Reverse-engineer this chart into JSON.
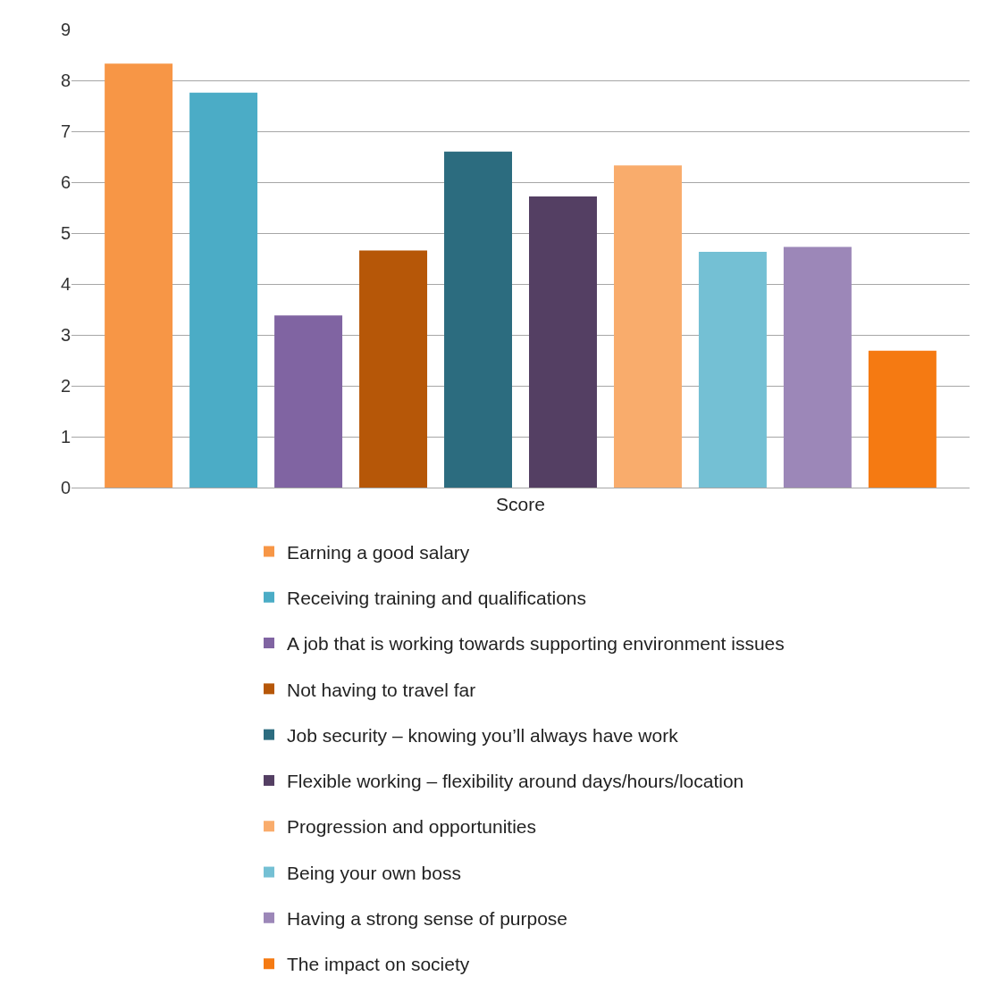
{
  "chart_data": {
    "type": "bar",
    "categories": [
      "Score"
    ],
    "series": [
      {
        "name": "Earning a good salary",
        "color": "#f79646",
        "values": [
          8.33
        ]
      },
      {
        "name": "Receiving training and qualifications",
        "color": "#4bacc6",
        "values": [
          7.76
        ]
      },
      {
        "name": "A job that is working towards supporting environment issues",
        "color": "#8064a2",
        "values": [
          3.38
        ]
      },
      {
        "name": "Not having to travel far",
        "color": "#b65708",
        "values": [
          4.66
        ]
      },
      {
        "name": "Job security – knowing you’ll always have work",
        "color": "#2c6c7f",
        "values": [
          6.6
        ]
      },
      {
        "name": "Flexible working – flexibility around days/hours/location",
        "color": "#543f63",
        "values": [
          5.72
        ]
      },
      {
        "name": "Progression and opportunities",
        "color": "#f9ac6c",
        "values": [
          6.33
        ]
      },
      {
        "name": "Being your own boss",
        "color": "#74c0d4",
        "values": [
          4.63
        ]
      },
      {
        "name": "Having a strong sense of purpose",
        "color": "#9c87b8",
        "values": [
          4.73
        ]
      },
      {
        "name": "The impact on society",
        "color": "#f57a12",
        "values": [
          2.69
        ]
      }
    ],
    "ylim": [
      0,
      9
    ],
    "yticks": [
      0,
      1,
      2,
      3,
      4,
      5,
      6,
      7,
      8,
      9
    ],
    "grid": "y",
    "legend": "bottom"
  }
}
